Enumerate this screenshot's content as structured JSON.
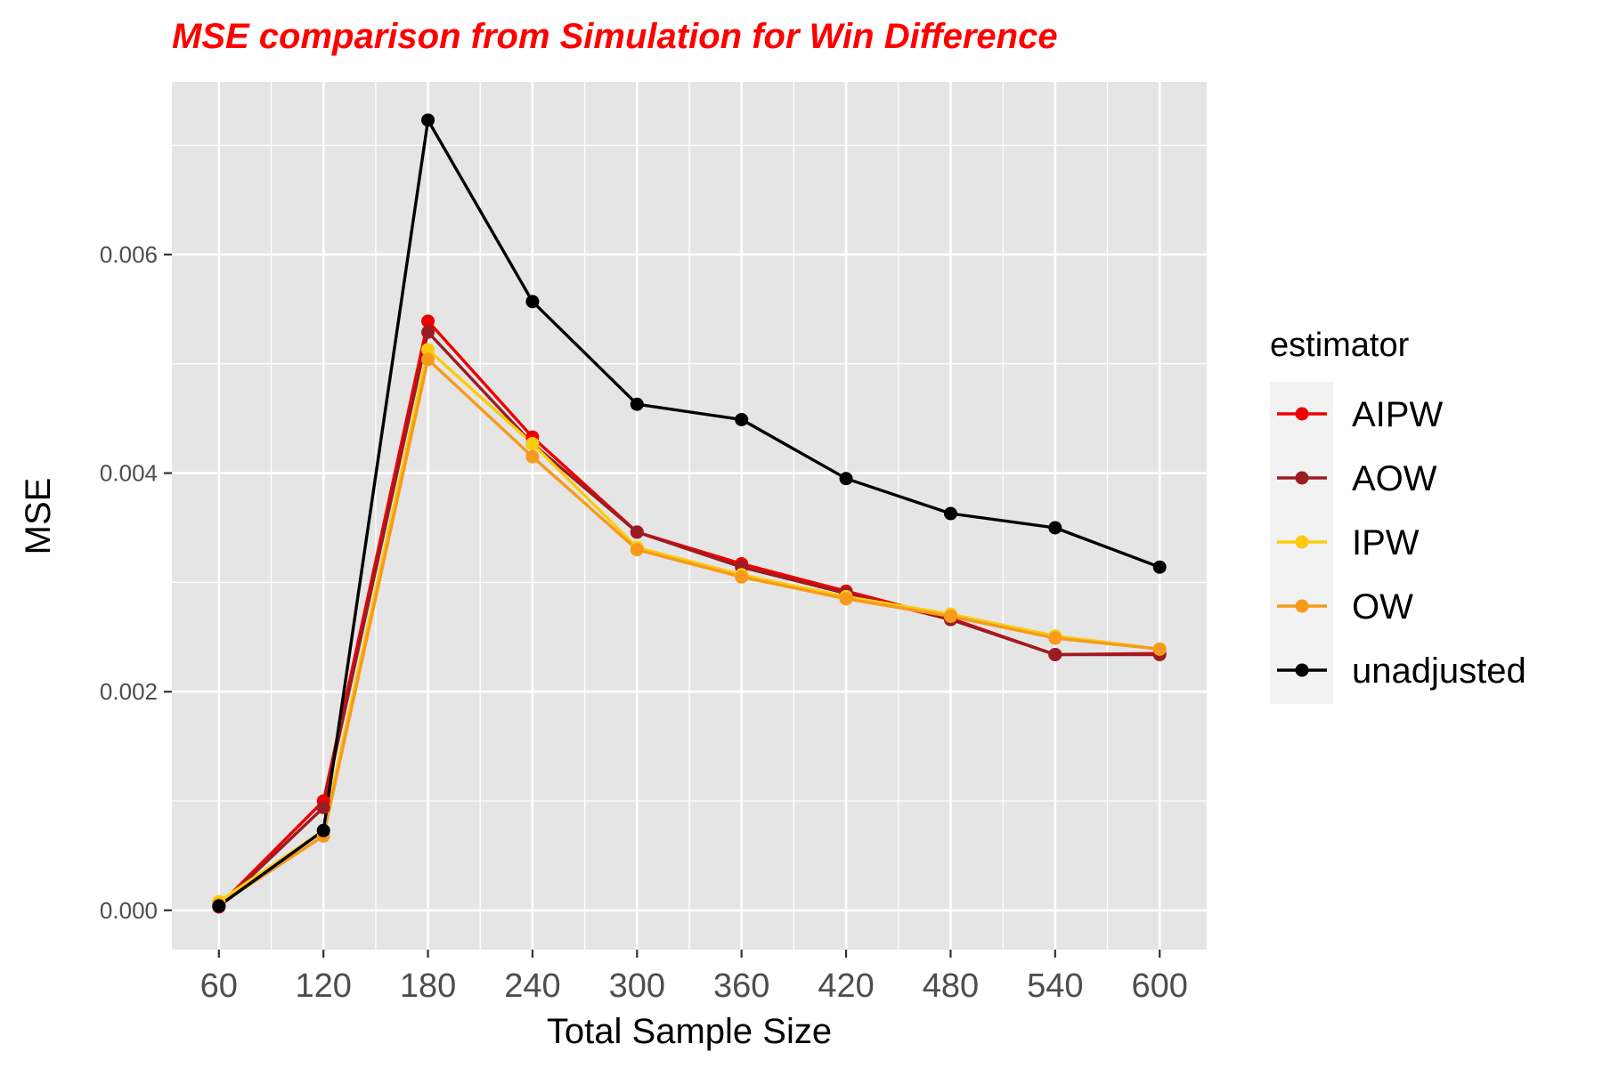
{
  "chart_data": {
    "type": "line",
    "title": "MSE comparison from Simulation for Win Difference",
    "title_color": "#ff0000",
    "xlabel": "Total Sample Size",
    "ylabel": "MSE",
    "x": [
      60,
      120,
      180,
      240,
      300,
      360,
      420,
      480,
      540,
      600
    ],
    "x_tick_labels": [
      "60",
      "120",
      "180",
      "240",
      "300",
      "360",
      "420",
      "480",
      "540",
      "600"
    ],
    "y_ticks": [
      0,
      0.002,
      0.004,
      0.006
    ],
    "y_tick_labels": [
      "0.000",
      "0.002",
      "0.004",
      "0.006"
    ],
    "xlim": [
      33,
      627
    ],
    "ylim": [
      -0.00036,
      0.00758
    ],
    "grid": true,
    "background_color": "#e5e5e5",
    "legend": {
      "title": "estimator",
      "position": "right",
      "background_color": "#f2f2f2"
    },
    "series": [
      {
        "name": "AIPW",
        "color": "#ee0000",
        "values": [
          4e-05,
          0.001,
          0.00539,
          0.00433,
          0.00346,
          0.00317,
          0.00292,
          0.00267,
          0.00234,
          0.00235
        ]
      },
      {
        "name": "AOW",
        "color": "#9b1c22",
        "values": [
          3e-05,
          0.00094,
          0.00529,
          0.00427,
          0.00346,
          0.00314,
          0.0029,
          0.00266,
          0.00234,
          0.00234
        ]
      },
      {
        "name": "IPW",
        "color": "#f9cc10",
        "values": [
          8e-05,
          0.00073,
          0.00513,
          0.00427,
          0.00332,
          0.00307,
          0.00287,
          0.00271,
          0.00251,
          0.00239
        ]
      },
      {
        "name": "OW",
        "color": "#f79a1c",
        "values": [
          5e-05,
          0.00068,
          0.00504,
          0.00415,
          0.0033,
          0.00305,
          0.00285,
          0.00269,
          0.00249,
          0.00239
        ]
      },
      {
        "name": "unadjusted",
        "color": "#000000",
        "values": [
          4e-05,
          0.00073,
          0.00723,
          0.00557,
          0.00463,
          0.00449,
          0.00395,
          0.00363,
          0.0035,
          0.00314
        ]
      }
    ]
  }
}
